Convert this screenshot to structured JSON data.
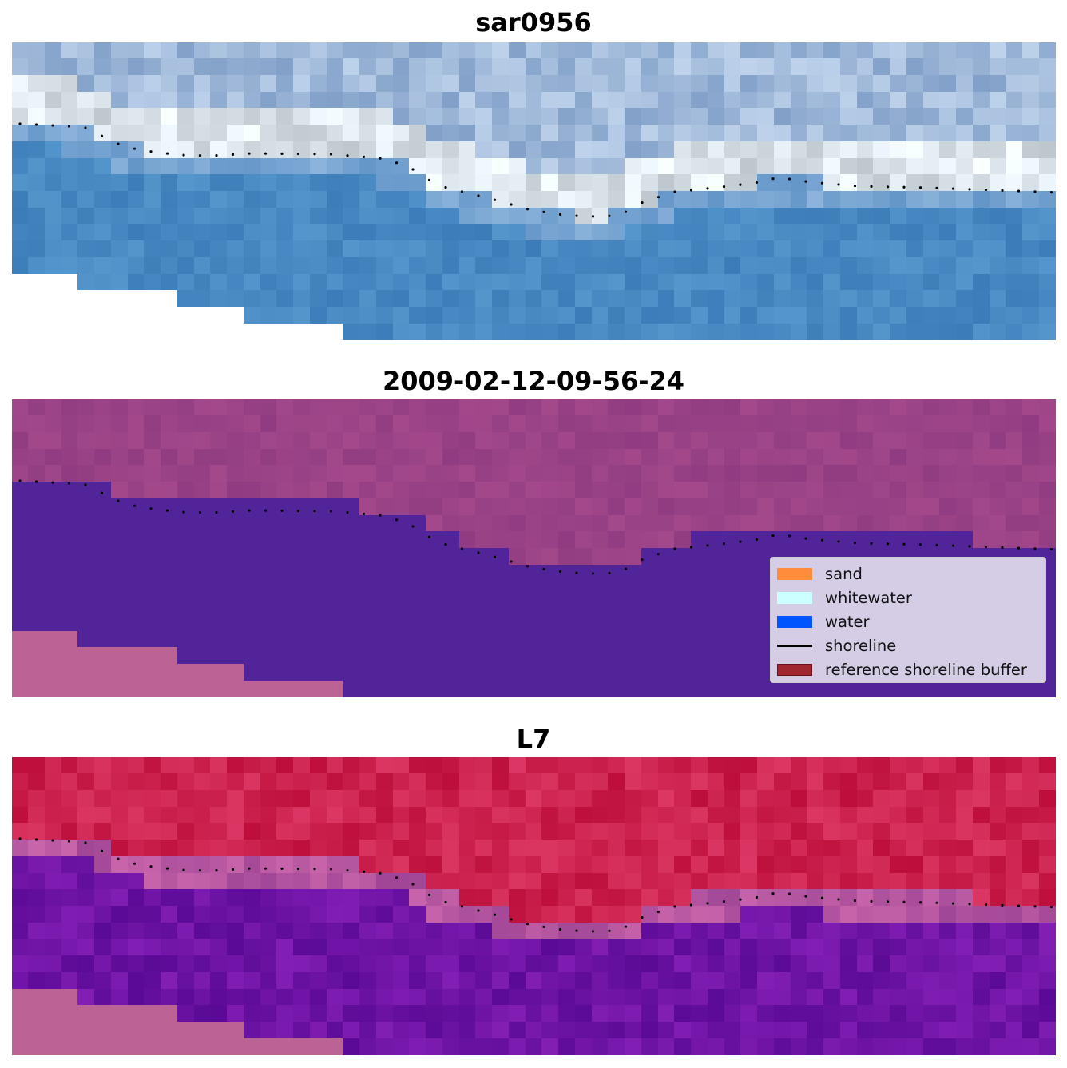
{
  "panels": [
    {
      "title": "sar0956"
    },
    {
      "title": "2009-02-12-09-56-24"
    },
    {
      "title": "L7"
    }
  ],
  "legend": {
    "items": [
      {
        "label": "sand",
        "color": "#ff8c3a",
        "kind": "patch"
      },
      {
        "label": "whitewater",
        "color": "#ccffff",
        "kind": "patch"
      },
      {
        "label": "water",
        "color": "#0055ff",
        "kind": "patch"
      },
      {
        "label": "shoreline",
        "color": "#000000",
        "kind": "line"
      },
      {
        "label": "reference shoreline buffer",
        "color": "#a0262f",
        "kind": "patch"
      }
    ]
  },
  "colors": {
    "classified_water": "#52249a",
    "classified_land": "#a34d8e",
    "nodata_fill": "#bb6395",
    "shoreline_dots": "#000000"
  }
}
